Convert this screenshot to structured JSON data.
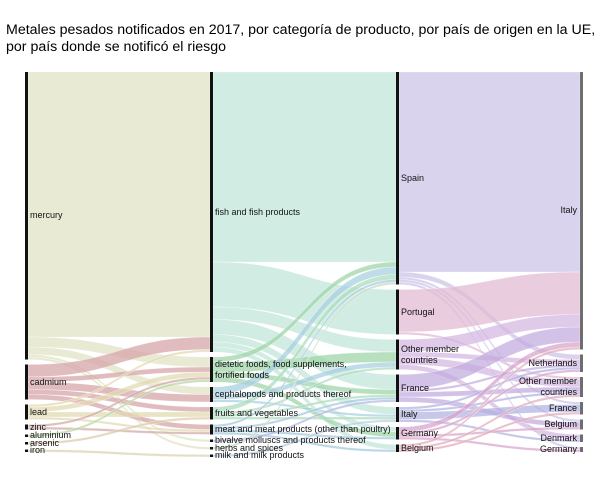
{
  "title": "Metales pesados notificados en 2017, por categoría de producto, por país de origen en la UE, por país donde se notificó el riesgo",
  "chart_data": {
    "type": "sankey",
    "title": "Metales pesados notificados en 2017, por categoría de producto, por país de origen en la UE, por país donde se notificó el riesgo",
    "columns": [
      {
        "nodes": [
          {
            "id": "mercury",
            "label": "mercury",
            "color": "#dfe2c2"
          },
          {
            "id": "cadmium",
            "label": "cadmium",
            "color": "#d6a2a6"
          },
          {
            "id": "lead",
            "label": "lead",
            "color": "#e2dab0"
          },
          {
            "id": "zinc",
            "label": "zinc",
            "color": "#cfa8a4"
          },
          {
            "id": "aluminium",
            "label": "aluminium",
            "color": "#b6d8a0"
          },
          {
            "id": "arsenic",
            "label": "arsenic",
            "color": "#dccaa6"
          },
          {
            "id": "iron",
            "label": "iron",
            "color": "#d8d2ae"
          }
        ]
      },
      {
        "nodes": [
          {
            "id": "fish",
            "label": "fish and fish products",
            "color": "#bfe4d8"
          },
          {
            "id": "diet",
            "label": "dietetic foods, food supplements, fortified foods",
            "color": "#9cd4a6"
          },
          {
            "id": "ceph",
            "label": "cephalopods and products thereof",
            "color": "#a6cfe0"
          },
          {
            "id": "fruits",
            "label": "fruits and vegetables",
            "color": "#a9dbbb"
          },
          {
            "id": "meat",
            "label": "meat and meat products (other than poultry)",
            "color": "#a2c8dc"
          },
          {
            "id": "bivalve",
            "label": "bivalve molluscs and products thereof",
            "color": "#b2bae2"
          },
          {
            "id": "herbs",
            "label": "herbs and spices",
            "color": "#c2dac2"
          },
          {
            "id": "milk",
            "label": "milk and milk products",
            "color": "#bacde2"
          }
        ]
      },
      {
        "nodes": [
          {
            "id": "o_es",
            "label": "Spain",
            "color": "#cbc2e8"
          },
          {
            "id": "o_pt",
            "label": "Portugal",
            "color": "#e2b8d2"
          },
          {
            "id": "o_other",
            "label": "Other member countries",
            "color": "#d4b6e2"
          },
          {
            "id": "o_fr",
            "label": "France",
            "color": "#c2aade"
          },
          {
            "id": "o_it",
            "label": "Italy",
            "color": "#b2b2e2"
          },
          {
            "id": "o_de",
            "label": "Germany",
            "color": "#d8a2ca"
          },
          {
            "id": "o_be",
            "label": "Belgium",
            "color": "#e2aaba"
          }
        ]
      },
      {
        "nodes": [
          {
            "id": "n_it",
            "label": "Italy",
            "color": "#777777"
          },
          {
            "id": "n_nl",
            "label": "Netherlands",
            "color": "#777777"
          },
          {
            "id": "n_other",
            "label": "Other member countries",
            "color": "#777777"
          },
          {
            "id": "n_fr",
            "label": "France",
            "color": "#777777"
          },
          {
            "id": "n_be",
            "label": "Belgium",
            "color": "#777777"
          },
          {
            "id": "n_dk",
            "label": "Denmark",
            "color": "#777777"
          },
          {
            "id": "n_de",
            "label": "Germany",
            "color": "#777777"
          }
        ]
      }
    ],
    "links": [
      [
        "mercury",
        "fish",
        106
      ],
      [
        "mercury",
        "diet",
        4
      ],
      [
        "mercury",
        "ceph",
        3
      ],
      [
        "mercury",
        "bivalve",
        1
      ],
      [
        "mercury",
        "herbs",
        1
      ],
      [
        "cadmium",
        "fish",
        5
      ],
      [
        "cadmium",
        "diet",
        2
      ],
      [
        "cadmium",
        "ceph",
        3
      ],
      [
        "cadmium",
        "fruits",
        2
      ],
      [
        "cadmium",
        "meat",
        2
      ],
      [
        "lead",
        "fish",
        1
      ],
      [
        "lead",
        "diet",
        2
      ],
      [
        "lead",
        "fruits",
        2
      ],
      [
        "lead",
        "meat",
        1
      ],
      [
        "zinc",
        "diet",
        1
      ],
      [
        "zinc",
        "meat",
        1
      ],
      [
        "aluminium",
        "diet",
        1
      ],
      [
        "arsenic",
        "fruits",
        1
      ],
      [
        "iron",
        "milk",
        1
      ],
      [
        "fish",
        "o_es",
        76
      ],
      [
        "fish",
        "o_pt",
        18
      ],
      [
        "fish",
        "o_other",
        5
      ],
      [
        "fish",
        "o_fr",
        6
      ],
      [
        "fish",
        "o_it",
        3
      ],
      [
        "fish",
        "o_de",
        2
      ],
      [
        "fish",
        "o_be",
        2
      ],
      [
        "diet",
        "o_es",
        2
      ],
      [
        "diet",
        "o_other",
        4
      ],
      [
        "diet",
        "o_fr",
        2
      ],
      [
        "diet",
        "o_de",
        2
      ],
      [
        "ceph",
        "o_es",
        3
      ],
      [
        "ceph",
        "o_other",
        2
      ],
      [
        "ceph",
        "o_it",
        1
      ],
      [
        "fruits",
        "o_es",
        2
      ],
      [
        "fruits",
        "o_other",
        1
      ],
      [
        "fruits",
        "o_fr",
        1
      ],
      [
        "fruits",
        "o_it",
        1
      ],
      [
        "meat",
        "o_es",
        1
      ],
      [
        "meat",
        "o_fr",
        1
      ],
      [
        "meat",
        "o_de",
        1
      ],
      [
        "meat",
        "o_be",
        1
      ],
      [
        "bivalve",
        "o_fr",
        1
      ],
      [
        "herbs",
        "o_es",
        1
      ],
      [
        "milk",
        "o_it",
        1
      ],
      [
        "o_es",
        "n_it",
        80
      ],
      [
        "o_es",
        "n_nl",
        2
      ],
      [
        "o_es",
        "n_fr",
        1
      ],
      [
        "o_es",
        "n_be",
        1
      ],
      [
        "o_es",
        "n_de",
        1
      ],
      [
        "o_pt",
        "n_it",
        17
      ],
      [
        "o_pt",
        "n_other",
        1
      ],
      [
        "o_other",
        "n_it",
        5
      ],
      [
        "o_other",
        "n_nl",
        2
      ],
      [
        "o_other",
        "n_other",
        3
      ],
      [
        "o_other",
        "n_dk",
        2
      ],
      [
        "o_fr",
        "n_it",
        6
      ],
      [
        "o_fr",
        "n_nl",
        1
      ],
      [
        "o_fr",
        "n_other",
        2
      ],
      [
        "o_fr",
        "n_be",
        2
      ],
      [
        "o_it",
        "n_nl",
        1
      ],
      [
        "o_it",
        "n_other",
        1
      ],
      [
        "o_it",
        "n_fr",
        3
      ],
      [
        "o_it",
        "n_dk",
        1
      ],
      [
        "o_de",
        "n_it",
        2
      ],
      [
        "o_de",
        "n_nl",
        1
      ],
      [
        "o_de",
        "n_be",
        1
      ],
      [
        "o_de",
        "n_de",
        1
      ],
      [
        "o_be",
        "n_it",
        1
      ],
      [
        "o_be",
        "n_other",
        1
      ],
      [
        "o_be",
        "n_fr",
        1
      ]
    ]
  }
}
